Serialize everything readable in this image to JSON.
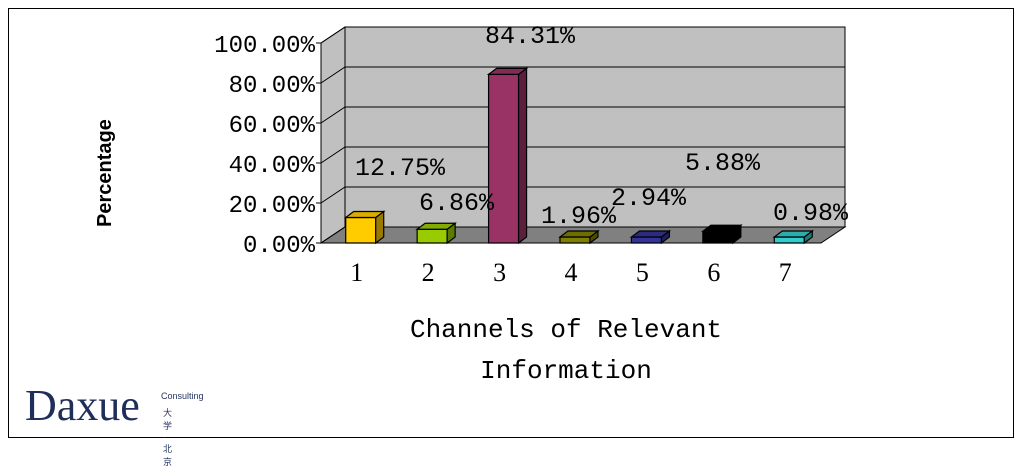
{
  "chart_data": {
    "type": "bar",
    "categories": [
      "1",
      "2",
      "3",
      "4",
      "5",
      "6",
      "7"
    ],
    "values": [
      12.75,
      6.86,
      84.31,
      1.96,
      2.94,
      5.88,
      0.98
    ],
    "data_labels": [
      "12.75%",
      "6.86%",
      "84.31%",
      "1.96%",
      "2.94%",
      "5.88%",
      "0.98%"
    ],
    "bar_colors": [
      "#FFCC00",
      "#99CC00",
      "#993366",
      "#808000",
      "#333399",
      "#000000",
      "#33CCCC"
    ],
    "xlabel": "Channels of Relevant Information",
    "ylabel": "Percentage",
    "ylim": [
      0,
      100
    ],
    "yticks": [
      "0.00%",
      "20.00%",
      "40.00%",
      "60.00%",
      "80.00%",
      "100.00%"
    ],
    "grid": true,
    "three_d": true,
    "wall_color": "#C0C0C0",
    "floor_color": "#808080"
  },
  "logo": {
    "main": "Daxue",
    "sub1": "Consulting",
    "sub2": "大学·北京"
  }
}
